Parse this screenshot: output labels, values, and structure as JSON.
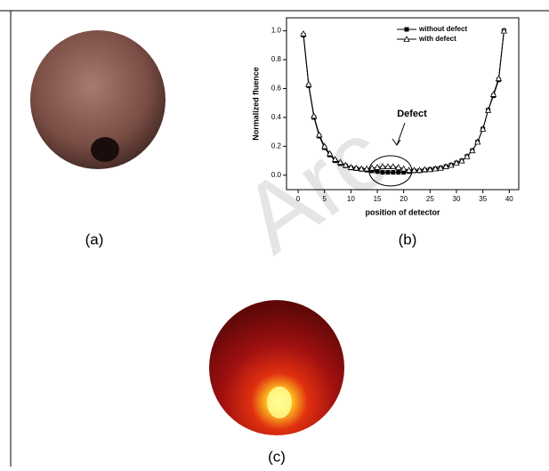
{
  "panels": {
    "a": "(a)",
    "b": "(b)",
    "c": "(c)"
  },
  "watermark": "Arc",
  "chart_data": {
    "type": "line",
    "xlabel": "position of detector",
    "ylabel": "Normalized fluence",
    "annotation": "Defect",
    "x": [
      1,
      2,
      3,
      4,
      5,
      6,
      7,
      8,
      9,
      10,
      11,
      12,
      13,
      14,
      15,
      16,
      17,
      18,
      19,
      20,
      21,
      22,
      23,
      24,
      25,
      26,
      27,
      28,
      29,
      30,
      31,
      32,
      33,
      34,
      35,
      36,
      37,
      38,
      39
    ],
    "series": [
      {
        "name": "without defect",
        "color": "#000000",
        "marker": "square",
        "values": [
          0.97,
          0.62,
          0.4,
          0.27,
          0.19,
          0.14,
          0.1,
          0.08,
          0.065,
          0.05,
          0.045,
          0.04,
          0.035,
          0.03,
          0.025,
          0.02,
          0.02,
          0.02,
          0.02,
          0.02,
          0.025,
          0.03,
          0.03,
          0.035,
          0.04,
          0.045,
          0.05,
          0.06,
          0.07,
          0.085,
          0.1,
          0.13,
          0.17,
          0.23,
          0.32,
          0.45,
          0.55,
          0.66,
          1.0
        ]
      },
      {
        "name": "with defect",
        "color": "#000000",
        "marker": "triangle",
        "values": [
          0.98,
          0.63,
          0.41,
          0.28,
          0.2,
          0.15,
          0.11,
          0.09,
          0.07,
          0.055,
          0.05,
          0.045,
          0.045,
          0.05,
          0.055,
          0.06,
          0.06,
          0.06,
          0.055,
          0.045,
          0.035,
          0.035,
          0.035,
          0.04,
          0.04,
          0.045,
          0.05,
          0.06,
          0.07,
          0.085,
          0.1,
          0.13,
          0.17,
          0.23,
          0.32,
          0.45,
          0.56,
          0.67,
          1.0
        ]
      }
    ],
    "xlim": [
      -2.2,
      41.8
    ],
    "xticks": [
      0,
      5,
      10,
      15,
      20,
      25,
      30,
      35,
      40
    ],
    "ylim": [
      -0.1,
      1.09
    ],
    "yticks": [
      {
        "value": 0,
        "label": "0.0"
      },
      0.2,
      0.4,
      0.6,
      0.8,
      {
        "value": 1,
        "label": "1.0"
      }
    ],
    "legend": "upper right"
  }
}
